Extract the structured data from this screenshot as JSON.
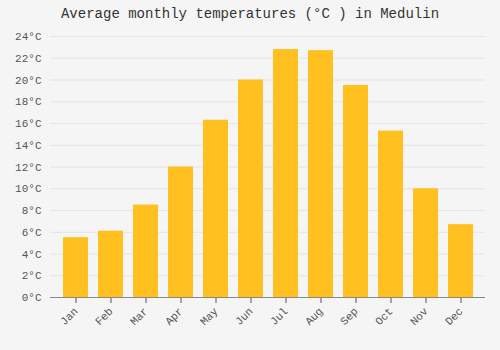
{
  "chart_data": {
    "type": "bar",
    "title": "Average monthly temperatures (°C ) in Medulin",
    "categories": [
      "Jan",
      "Feb",
      "Mar",
      "Apr",
      "May",
      "Jun",
      "Jul",
      "Aug",
      "Sep",
      "Oct",
      "Nov",
      "Dec"
    ],
    "values": [
      5.5,
      6.1,
      8.5,
      12.0,
      16.3,
      20.0,
      22.8,
      22.7,
      19.5,
      15.3,
      10.0,
      6.7
    ],
    "color": "#FFC020",
    "ylim": [
      0,
      24
    ],
    "yticks": [
      {
        "value": 0,
        "label": "0°C"
      },
      {
        "value": 2,
        "label": "2°C"
      },
      {
        "value": 4,
        "label": "4°C"
      },
      {
        "value": 6,
        "label": "6°C"
      },
      {
        "value": 8,
        "label": "8°C"
      },
      {
        "value": 10,
        "label": "10°C"
      },
      {
        "value": 12,
        "label": "12°C"
      },
      {
        "value": 14,
        "label": "14°C"
      },
      {
        "value": 16,
        "label": "16°C"
      },
      {
        "value": 18,
        "label": "18°C"
      },
      {
        "value": 20,
        "label": "20°C"
      },
      {
        "value": 22,
        "label": "22°C"
      },
      {
        "value": 24,
        "label": "24°C"
      }
    ],
    "grid": true
  }
}
